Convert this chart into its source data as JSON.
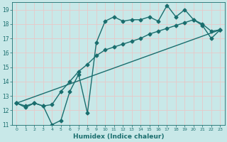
{
  "xlabel": "Humidex (Indice chaleur)",
  "background_color": "#c8e8e8",
  "grid_color": "#e8c8c8",
  "line_color": "#1a6e6e",
  "xlim": [
    -0.5,
    23.5
  ],
  "ylim": [
    11,
    19.5
  ],
  "yticks": [
    11,
    12,
    13,
    14,
    15,
    16,
    17,
    18,
    19
  ],
  "xticks": [
    0,
    1,
    2,
    3,
    4,
    5,
    6,
    7,
    8,
    9,
    10,
    11,
    12,
    13,
    14,
    15,
    16,
    17,
    18,
    19,
    20,
    21,
    22,
    23
  ],
  "line1_x": [
    0,
    1,
    2,
    3,
    4,
    5,
    6,
    7,
    8,
    9,
    10,
    11,
    12,
    13,
    14,
    15,
    16,
    17,
    18,
    19,
    20,
    21,
    22,
    23
  ],
  "line1_y": [
    12.5,
    12.3,
    12.5,
    12.3,
    11.0,
    11.3,
    13.3,
    14.5,
    11.8,
    16.7,
    18.2,
    18.5,
    18.2,
    18.3,
    18.3,
    18.5,
    18.2,
    19.3,
    18.5,
    19.0,
    18.3,
    17.9,
    17.0,
    17.6
  ],
  "line2_x": [
    0,
    1,
    2,
    3,
    4,
    5,
    6,
    7,
    8,
    9,
    10,
    11,
    12,
    13,
    14,
    15,
    16,
    17,
    18,
    19,
    20,
    21,
    22,
    23
  ],
  "line2_y": [
    12.5,
    12.2,
    12.5,
    12.3,
    12.4,
    13.3,
    14.0,
    14.7,
    15.2,
    15.8,
    16.2,
    16.4,
    16.6,
    16.8,
    17.0,
    17.3,
    17.5,
    17.7,
    17.9,
    18.1,
    18.3,
    18.0,
    17.5,
    17.6
  ],
  "line3_x": [
    0,
    23
  ],
  "line3_y": [
    12.5,
    17.6
  ],
  "marker": "D",
  "markersize": 2.5,
  "linewidth": 1.0
}
